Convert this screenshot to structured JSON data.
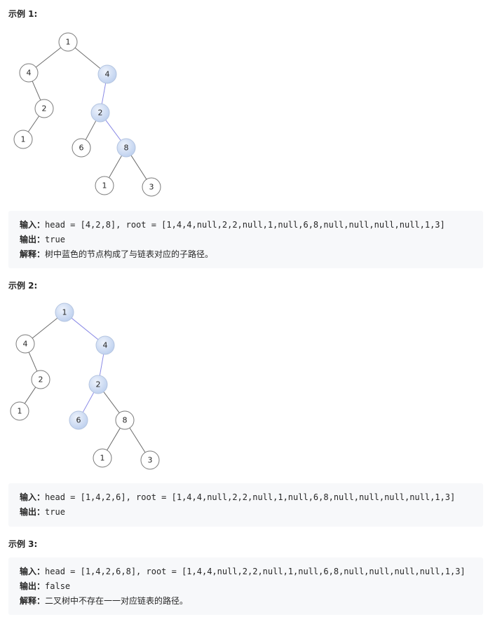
{
  "examples": [
    {
      "title": "示例 1:",
      "tree": {
        "nodes": [
          {
            "id": "n1",
            "value": "1",
            "highlighted": false
          },
          {
            "id": "n2",
            "value": "4",
            "highlighted": false
          },
          {
            "id": "n3",
            "value": "4",
            "highlighted": true
          },
          {
            "id": "n4",
            "value": "2",
            "highlighted": false
          },
          {
            "id": "n5",
            "value": "1",
            "highlighted": false
          },
          {
            "id": "n6",
            "value": "2",
            "highlighted": true
          },
          {
            "id": "n7",
            "value": "6",
            "highlighted": false
          },
          {
            "id": "n8",
            "value": "8",
            "highlighted": true
          },
          {
            "id": "n9",
            "value": "1",
            "highlighted": false
          },
          {
            "id": "n10",
            "value": "3",
            "highlighted": false
          }
        ],
        "edges": [
          {
            "from": "n1",
            "to": "n2",
            "highlighted": false
          },
          {
            "from": "n1",
            "to": "n3",
            "highlighted": false
          },
          {
            "from": "n2",
            "to": "n4",
            "highlighted": false
          },
          {
            "from": "n4",
            "to": "n5",
            "highlighted": false
          },
          {
            "from": "n3",
            "to": "n6",
            "highlighted": true
          },
          {
            "from": "n6",
            "to": "n7",
            "highlighted": false
          },
          {
            "from": "n6",
            "to": "n8",
            "highlighted": true
          },
          {
            "from": "n8",
            "to": "n9",
            "highlighted": false
          },
          {
            "from": "n8",
            "to": "n10",
            "highlighted": false
          }
        ]
      },
      "lines": [
        {
          "label": "输入：",
          "text": "head = [4,2,8], root = [1,4,4,null,2,2,null,1,null,6,8,null,null,null,null,1,3]"
        },
        {
          "label": "输出：",
          "text": "true"
        },
        {
          "label": "解释：",
          "text": "树中蓝色的节点构成了与链表对应的子路径。"
        }
      ]
    },
    {
      "title": "示例 2:",
      "tree": {
        "nodes": [
          {
            "id": "n1",
            "value": "1",
            "highlighted": true
          },
          {
            "id": "n2",
            "value": "4",
            "highlighted": false
          },
          {
            "id": "n3",
            "value": "4",
            "highlighted": true
          },
          {
            "id": "n4",
            "value": "2",
            "highlighted": false
          },
          {
            "id": "n5",
            "value": "1",
            "highlighted": false
          },
          {
            "id": "n6",
            "value": "2",
            "highlighted": true
          },
          {
            "id": "n7",
            "value": "6",
            "highlighted": true
          },
          {
            "id": "n8",
            "value": "8",
            "highlighted": false
          },
          {
            "id": "n9",
            "value": "1",
            "highlighted": false
          },
          {
            "id": "n10",
            "value": "3",
            "highlighted": false
          }
        ],
        "edges": [
          {
            "from": "n1",
            "to": "n2",
            "highlighted": false
          },
          {
            "from": "n1",
            "to": "n3",
            "highlighted": true
          },
          {
            "from": "n2",
            "to": "n4",
            "highlighted": false
          },
          {
            "from": "n4",
            "to": "n5",
            "highlighted": false
          },
          {
            "from": "n3",
            "to": "n6",
            "highlighted": true
          },
          {
            "from": "n6",
            "to": "n7",
            "highlighted": true
          },
          {
            "from": "n6",
            "to": "n8",
            "highlighted": false
          },
          {
            "from": "n8",
            "to": "n9",
            "highlighted": false
          },
          {
            "from": "n8",
            "to": "n10",
            "highlighted": false
          }
        ]
      },
      "lines": [
        {
          "label": "输入：",
          "text": "head = [1,4,2,6], root = [1,4,4,null,2,2,null,1,null,6,8,null,null,null,null,1,3]"
        },
        {
          "label": "输出：",
          "text": "true"
        }
      ]
    },
    {
      "title": "示例 3:",
      "lines": [
        {
          "label": "输入：",
          "text": "head = [1,4,2,6,8], root = [1,4,4,null,2,2,null,1,null,6,8,null,null,null,null,1,3]"
        },
        {
          "label": "输出：",
          "text": "false"
        },
        {
          "label": "解释：",
          "text": "二叉树中不存在一一对应链表的路径。"
        }
      ]
    }
  ],
  "colors": {
    "highlight_fill": "#c9d9f5",
    "highlight_edge": "#8a8ae6",
    "code_background": "#f7f8fa"
  }
}
